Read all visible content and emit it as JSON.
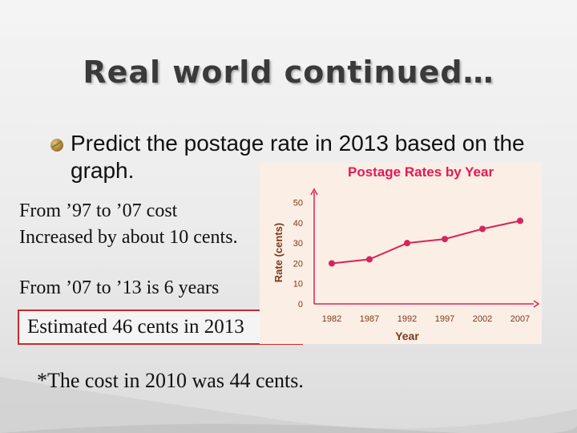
{
  "slide": {
    "title": "Real world continued…",
    "bullet": "Predict the postage rate in 2013 based on the graph.",
    "note_line1": "From ’97 to ’07 cost",
    "note_line2": "Increased by about 10 cents.",
    "note_years": "From ’07 to ’13 is 6 years",
    "estimate": "Estimated 46 cents in 2013",
    "footnote": "*The cost in 2010 was 44 cents."
  },
  "colors": {
    "accent_line": "#d9235c",
    "title_text": "#e01a56",
    "axis_text": "#7a3a1a",
    "estimate_border": "#cc2a2a"
  },
  "chart_data": {
    "type": "line",
    "title": "Postage Rates by Year",
    "xlabel": "Year",
    "ylabel": "Rate (cents)",
    "categories": [
      "1982",
      "1987",
      "1992",
      "1997",
      "2002",
      "2007"
    ],
    "yticks": [
      "0",
      "10",
      "20",
      "30",
      "40",
      "50"
    ],
    "ylim": [
      0,
      55
    ],
    "grid": false,
    "series": [
      {
        "values": [
          20,
          22,
          30,
          32,
          37,
          41
        ]
      }
    ]
  }
}
